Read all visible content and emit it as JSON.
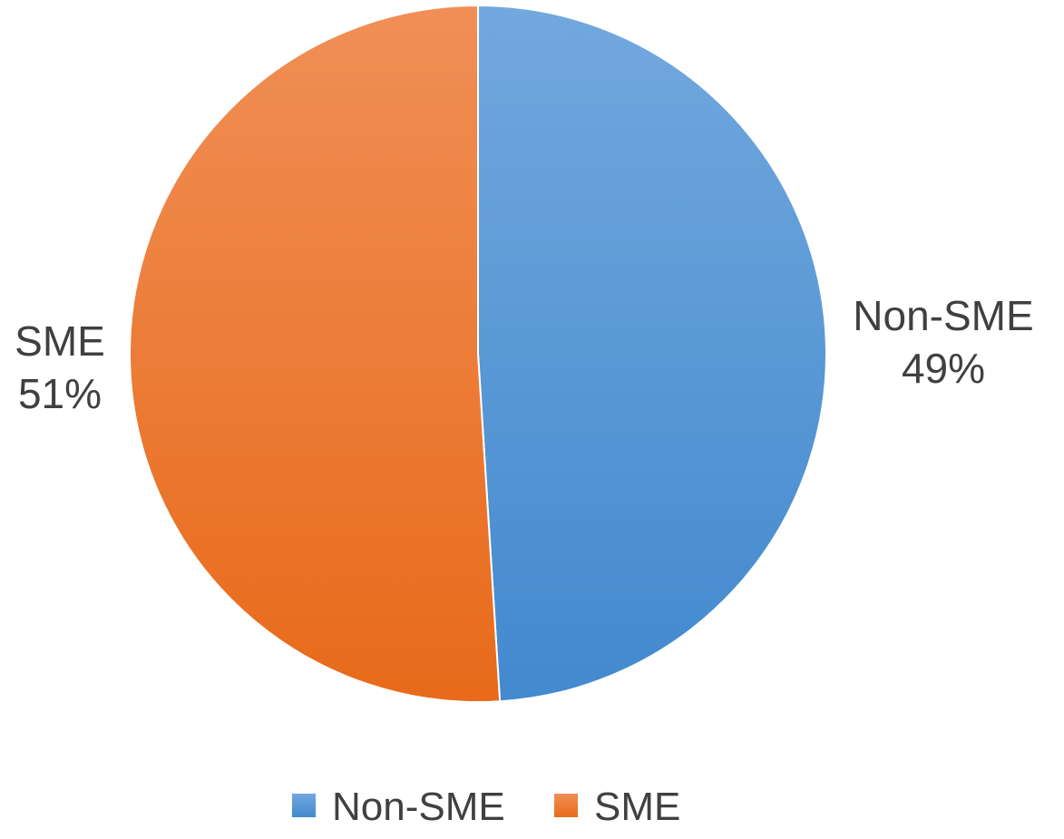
{
  "chart_data": {
    "type": "pie",
    "title": "",
    "legend_position": "bottom",
    "slices": [
      {
        "name": "Non-SME",
        "value": 49,
        "label_lines": [
          "Non-SME",
          "49%"
        ],
        "color_light": "#72a8de",
        "color_dark": "#4289ce"
      },
      {
        "name": "SME",
        "value": 51,
        "label_lines": [
          "SME",
          "51%"
        ],
        "color_light": "#f08f56",
        "color_dark": "#e86a1a"
      }
    ]
  }
}
